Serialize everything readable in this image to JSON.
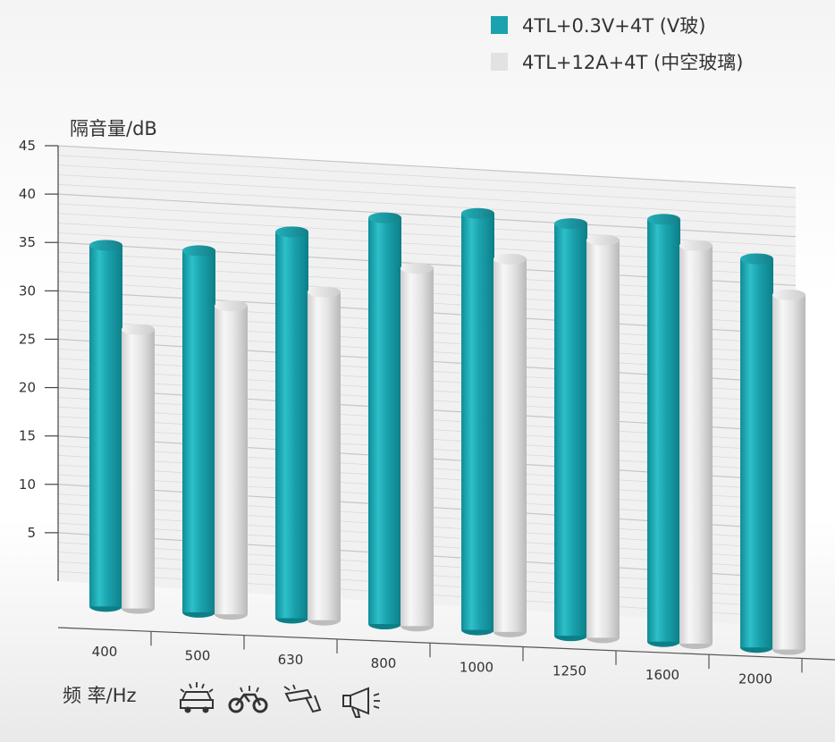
{
  "chart_data": {
    "type": "bar",
    "ylabel": "隔音量/dB",
    "xlabel": "频 率/Hz",
    "ylim": [
      0,
      45
    ],
    "yticks": [
      5,
      10,
      15,
      20,
      25,
      30,
      35,
      40,
      45
    ],
    "categories": [
      "400",
      "500",
      "630",
      "800",
      "1000",
      "1250",
      "1600",
      "2000"
    ],
    "series": [
      {
        "name": "4TL+0.3V+4T (V玻)",
        "color": "#1aa3ae",
        "values": [
          35,
          35,
          37.5,
          39.5,
          40.5,
          40,
          41,
          37.5
        ]
      },
      {
        "name": "4TL+12A+4T (中空玻璃)",
        "color": "#e2e2e2",
        "values": [
          26.5,
          29.5,
          31.5,
          34.5,
          36,
          38.5,
          38.5,
          34
        ]
      }
    ],
    "legend_position": "top-right",
    "grid": true,
    "icons": [
      "car-icon",
      "motorcycle-icon",
      "drill-icon",
      "megaphone-icon"
    ]
  }
}
